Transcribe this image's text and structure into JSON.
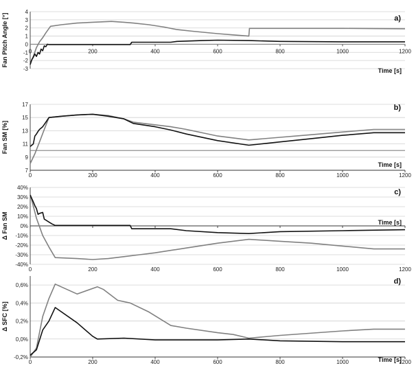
{
  "colors": {
    "black_series": "#111111",
    "gray_series": "#808080",
    "ref_line": "#808080",
    "grid": "#d0d0d0"
  },
  "chart_data": [
    {
      "type": "line",
      "panel_label": "a)",
      "xlabel": "Time [s]",
      "ylabel": "Fan Pitch Angle [°]",
      "xlim": [
        0,
        1200
      ],
      "ylim": [
        -3,
        4
      ],
      "xticks": [
        0,
        200,
        400,
        600,
        800,
        1000,
        1200
      ],
      "xtick_labels": [
        "0",
        "200",
        "400",
        "600",
        "800",
        "1000",
        "1200"
      ],
      "yticks": [
        -3,
        -2,
        -1,
        0,
        1,
        2,
        3,
        4
      ],
      "ytick_labels": [
        "-3",
        "-2",
        "-1",
        "0",
        "1",
        "2",
        "3",
        "4"
      ],
      "grid": true,
      "series": [
        {
          "color": "#808080",
          "x": [
            0,
            10,
            20,
            30,
            40,
            50,
            65,
            100,
            150,
            200,
            260,
            300,
            330,
            380,
            430,
            470,
            520,
            600,
            650,
            700,
            702,
            800,
            1000,
            1200
          ],
          "y": [
            -2.4,
            -1.5,
            -0.4,
            0.3,
            0.8,
            1.4,
            2.2,
            2.4,
            2.6,
            2.7,
            2.8,
            2.7,
            2.6,
            2.4,
            2.1,
            1.8,
            1.6,
            1.3,
            1.15,
            1.0,
            1.95,
            1.95,
            1.95,
            1.9
          ]
        },
        {
          "color": "#111111",
          "x": [
            0,
            5,
            10,
            15,
            20,
            25,
            30,
            35,
            40,
            45,
            50,
            55,
            60,
            100,
            200,
            320,
            325,
            450,
            470,
            550,
            600,
            700,
            800,
            1000,
            1200
          ],
          "y": [
            -2.5,
            -1.9,
            -1.6,
            -1.2,
            -1.5,
            -1.0,
            -1.2,
            -0.6,
            -0.8,
            -0.2,
            -0.3,
            0.0,
            -0.05,
            -0.05,
            -0.05,
            -0.05,
            0.25,
            0.25,
            0.35,
            0.45,
            0.5,
            0.45,
            0.35,
            0.3,
            0.3
          ]
        }
      ],
      "reference_lines": [
        {
          "y": 0,
          "color": "#808080"
        }
      ]
    },
    {
      "type": "line",
      "panel_label": "b)",
      "xlabel": "Time [s]",
      "ylabel": "Fan SM [%]",
      "xlim": [
        0,
        1200
      ],
      "ylim": [
        7,
        17
      ],
      "xticks": [
        0,
        200,
        400,
        600,
        800,
        1000,
        1200
      ],
      "xtick_labels": [
        "0",
        "200",
        "400",
        "600",
        "800",
        "1000",
        "1200"
      ],
      "yticks": [
        7,
        9,
        11,
        13,
        15,
        17
      ],
      "ytick_labels": [
        "7",
        "9",
        "11",
        "13",
        "15",
        "17"
      ],
      "grid": true,
      "series": [
        {
          "color": "#808080",
          "x": [
            0,
            15,
            30,
            45,
            60,
            100,
            150,
            200,
            250,
            300,
            330,
            400,
            450,
            500,
            600,
            700,
            800,
            900,
            1000,
            1100,
            1200
          ],
          "y": [
            8.0,
            9.5,
            11.3,
            13.2,
            15.0,
            15.2,
            15.4,
            15.5,
            15.3,
            14.8,
            14.3,
            13.9,
            13.6,
            13.2,
            12.2,
            11.6,
            12.0,
            12.4,
            12.8,
            13.2,
            13.2
          ]
        },
        {
          "color": "#111111",
          "x": [
            0,
            10,
            15,
            20,
            25,
            30,
            40,
            50,
            60,
            100,
            150,
            200,
            250,
            300,
            330,
            400,
            450,
            500,
            600,
            700,
            800,
            900,
            1000,
            1100,
            1200
          ],
          "y": [
            10.6,
            11.0,
            12.2,
            12.5,
            12.9,
            13.2,
            13.6,
            14.3,
            15.0,
            15.2,
            15.4,
            15.5,
            15.2,
            14.8,
            14.1,
            13.6,
            13.1,
            12.5,
            11.5,
            10.8,
            11.3,
            11.8,
            12.3,
            12.7,
            12.7
          ]
        }
      ],
      "reference_lines": [
        {
          "y": 10,
          "color": "#808080"
        }
      ]
    },
    {
      "type": "line",
      "panel_label": "c)",
      "xlabel": "Time [s]",
      "ylabel": "Δ Fan SM",
      "xlim": [
        0,
        1200
      ],
      "ylim": [
        -40,
        40
      ],
      "xticks": [
        0,
        200,
        400,
        600,
        800,
        1000,
        1200
      ],
      "xtick_labels": [
        "0",
        "200",
        "400",
        "600",
        "800",
        "1000",
        "1200"
      ],
      "yticks": [
        -40,
        -30,
        -20,
        -10,
        0,
        10,
        20,
        30,
        40
      ],
      "ytick_labels": [
        "-40%",
        "-30%",
        "-20%",
        "-10%",
        "0%",
        "10%",
        "20%",
        "30%",
        "40%"
      ],
      "grid": true,
      "series": [
        {
          "color": "#808080",
          "x": [
            0,
            20,
            40,
            60,
            80,
            150,
            200,
            250,
            300,
            350,
            400,
            500,
            600,
            700,
            800,
            900,
            1000,
            1100,
            1200
          ],
          "y": [
            33,
            8,
            -10,
            -22,
            -33,
            -34,
            -35,
            -34,
            -32,
            -30,
            -28,
            -23,
            -18,
            -14,
            -16,
            -18,
            -21,
            -24,
            -24
          ]
        },
        {
          "color": "#111111",
          "x": [
            0,
            10,
            15,
            20,
            25,
            30,
            40,
            45,
            50,
            60,
            70,
            80,
            200,
            320,
            325,
            450,
            500,
            600,
            700,
            800,
            1000,
            1200
          ],
          "y": [
            32,
            25,
            21,
            18,
            12,
            13,
            14,
            7,
            6,
            4,
            2,
            0.5,
            0.5,
            0.5,
            -3,
            -3,
            -5,
            -7,
            -8,
            -6,
            -5,
            -4
          ]
        }
      ],
      "reference_lines": []
    },
    {
      "type": "line",
      "panel_label": "d)",
      "xlabel": "Time [s]",
      "ylabel": "Δ SFC [%]",
      "xlim": [
        0,
        1200
      ],
      "ylim": [
        -0.2,
        0.7
      ],
      "xticks": [
        0,
        200,
        400,
        600,
        800,
        1000,
        1200
      ],
      "xtick_labels": [
        "0",
        "200",
        "400",
        "600",
        "800",
        "1000",
        "1200"
      ],
      "yticks": [
        -0.2,
        0.0,
        0.2,
        0.4,
        0.6
      ],
      "ytick_labels": [
        "-0,2%",
        "0,0%",
        "0,2%",
        "0,4%",
        "0,6%"
      ],
      "grid": true,
      "series": [
        {
          "color": "#808080",
          "x": [
            0,
            20,
            40,
            60,
            80,
            150,
            215,
            235,
            280,
            320,
            380,
            450,
            500,
            600,
            650,
            700,
            800,
            1000,
            1100,
            1200
          ],
          "y": [
            -0.2,
            -0.1,
            0.25,
            0.45,
            0.61,
            0.5,
            0.58,
            0.55,
            0.43,
            0.4,
            0.3,
            0.15,
            0.12,
            0.07,
            0.05,
            0.01,
            0.04,
            0.09,
            0.11,
            0.11
          ]
        },
        {
          "color": "#111111",
          "x": [
            0,
            20,
            40,
            60,
            80,
            150,
            200,
            215,
            300,
            400,
            600,
            700,
            800,
            1000,
            1200
          ],
          "y": [
            -0.18,
            -0.12,
            0.1,
            0.2,
            0.35,
            0.18,
            0.03,
            0.0,
            0.01,
            -0.01,
            -0.01,
            0.0,
            -0.02,
            -0.03,
            -0.03
          ]
        }
      ],
      "reference_lines": []
    }
  ]
}
